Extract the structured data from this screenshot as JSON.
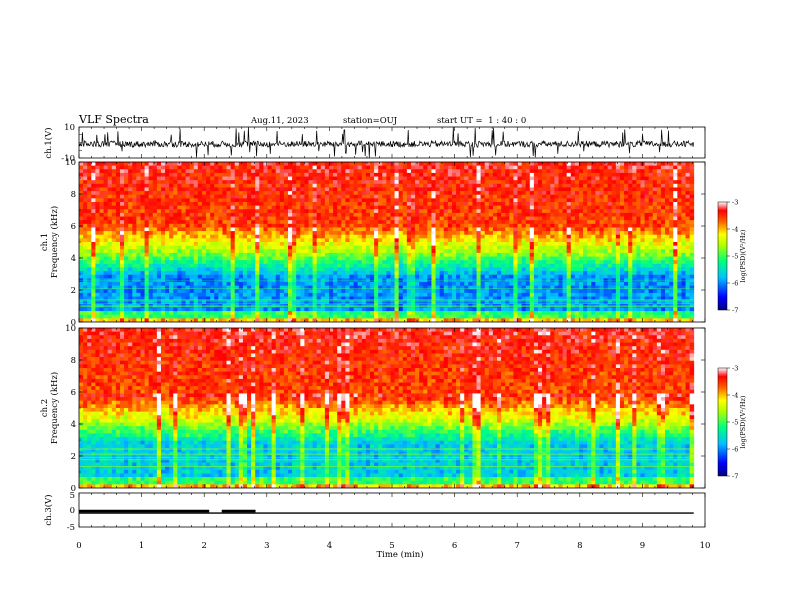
{
  "header": {
    "title": "VLF Spectra",
    "date": "Aug.11, 2023",
    "station": "station=OUJ",
    "start": "start UT =  1 : 40 : 0"
  },
  "colors": {
    "spectrum_low": "#00007f",
    "spectrum_mid": "#00ff80",
    "spectrum_high": "#ff2000",
    "trace": "#000000"
  },
  "chart_data": [
    {
      "type": "line",
      "name": "ch1_waveform",
      "ylabel": "ch.1(V)",
      "ylim": [
        -10,
        10
      ],
      "yticks": [
        "10",
        "-10"
      ],
      "xlim": [
        0,
        10
      ],
      "note": "noisy waveform centred near -1 V with spikes to about +/-10 V"
    },
    {
      "type": "heatmap",
      "name": "ch1_spectrogram",
      "ylabel": "ch.1\nFrequency (kHz)",
      "ylabel_lines": [
        "ch.1",
        "Frequency (kHz)"
      ],
      "ylim": [
        0,
        10
      ],
      "yticks": [
        "0",
        "2",
        "4",
        "6",
        "8",
        "10"
      ],
      "xlim": [
        0,
        9.82
      ],
      "colorbar": {
        "label": "log(PSD)(V²/Hz)",
        "range": [
          -7,
          -3
        ],
        "ticks": [
          "-3",
          "-4",
          "-5",
          "-6",
          "-7"
        ]
      }
    },
    {
      "type": "heatmap",
      "name": "ch2_spectrogram",
      "ylabel": "ch.2\nFrequency (kHz)",
      "ylabel_lines": [
        "ch.2",
        "Frequency (kHz)"
      ],
      "ylim": [
        0,
        10
      ],
      "yticks": [
        "0",
        "2",
        "4",
        "6",
        "8",
        "10"
      ],
      "xlim": [
        0,
        9.82
      ],
      "colorbar": {
        "label": "log(PSD)(V²/Hz)",
        "range": [
          -7,
          -3
        ],
        "ticks": [
          "-3",
          "-4",
          "-5",
          "-6",
          "-7"
        ]
      }
    },
    {
      "type": "line",
      "name": "ch3_level",
      "ylabel": "ch.3(V)",
      "ylim": [
        -5,
        5
      ],
      "yticks": [
        "5",
        "0",
        "-5"
      ],
      "xlim": [
        0,
        10
      ],
      "segments": [
        {
          "x": [
            0,
            2.08
          ],
          "y": -0.3
        },
        {
          "x": [
            2.28,
            2.82
          ],
          "y": -0.3
        },
        {
          "x": [
            0,
            9.82
          ],
          "y": -0.9
        }
      ],
      "xlabel": "Time (min)",
      "xticks": [
        "0",
        "1",
        "2",
        "3",
        "4",
        "5",
        "6",
        "7",
        "8",
        "9",
        "10"
      ]
    }
  ]
}
